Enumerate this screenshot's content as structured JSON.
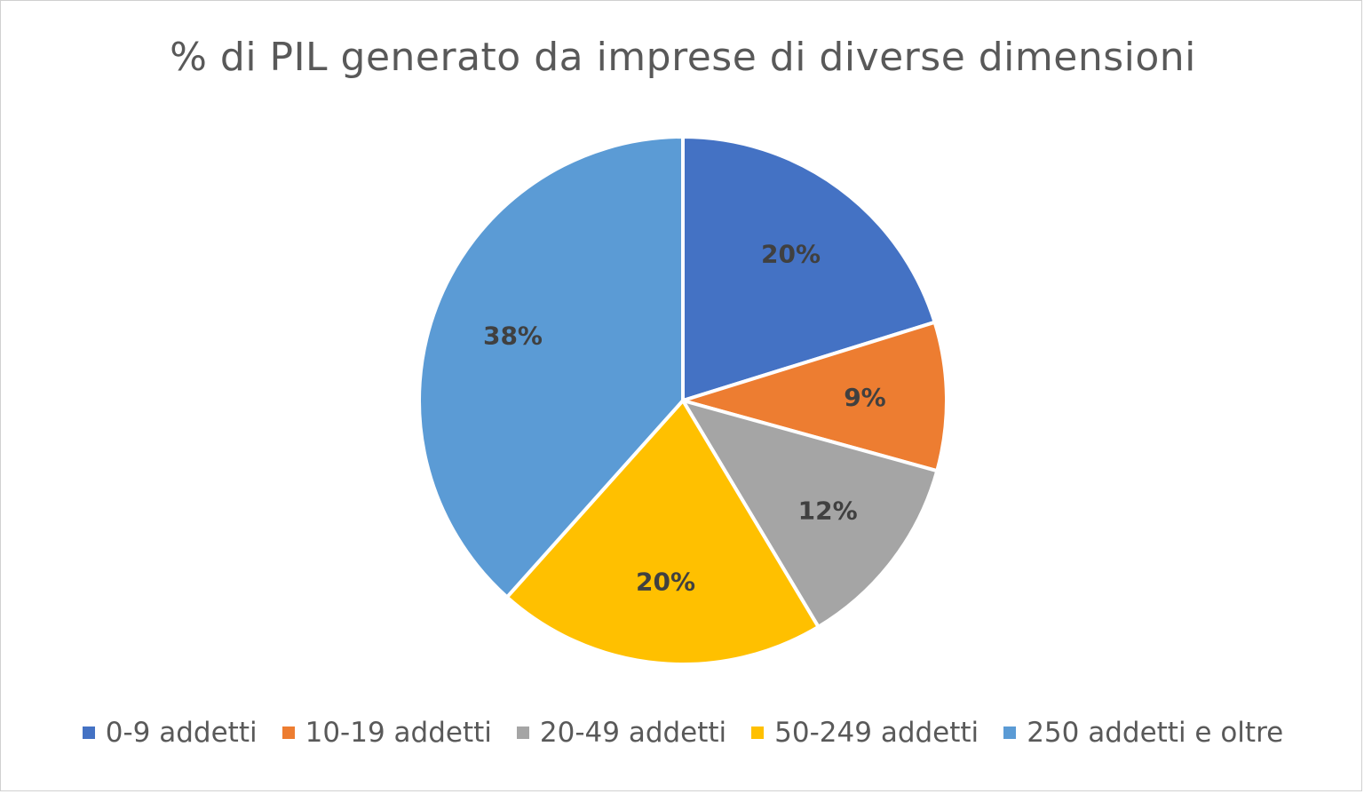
{
  "chart_data": {
    "type": "pie",
    "title": "% di PIL generato da imprese di diverse dimensioni",
    "categories": [
      "0-9 addetti",
      "10-19 addetti",
      "20-49 addetti",
      "50-249 addetti",
      "250 addetti e oltre"
    ],
    "values": [
      20,
      9,
      12,
      20,
      38
    ],
    "data_labels": [
      "20%",
      "9%",
      "12%",
      "20%",
      "38%"
    ],
    "colors": [
      "#4472C4",
      "#ED7D31",
      "#A5A5A5",
      "#FFC000",
      "#5B9BD5"
    ],
    "start_angle_deg": 0,
    "direction": "clockwise",
    "legend_position": "bottom"
  }
}
